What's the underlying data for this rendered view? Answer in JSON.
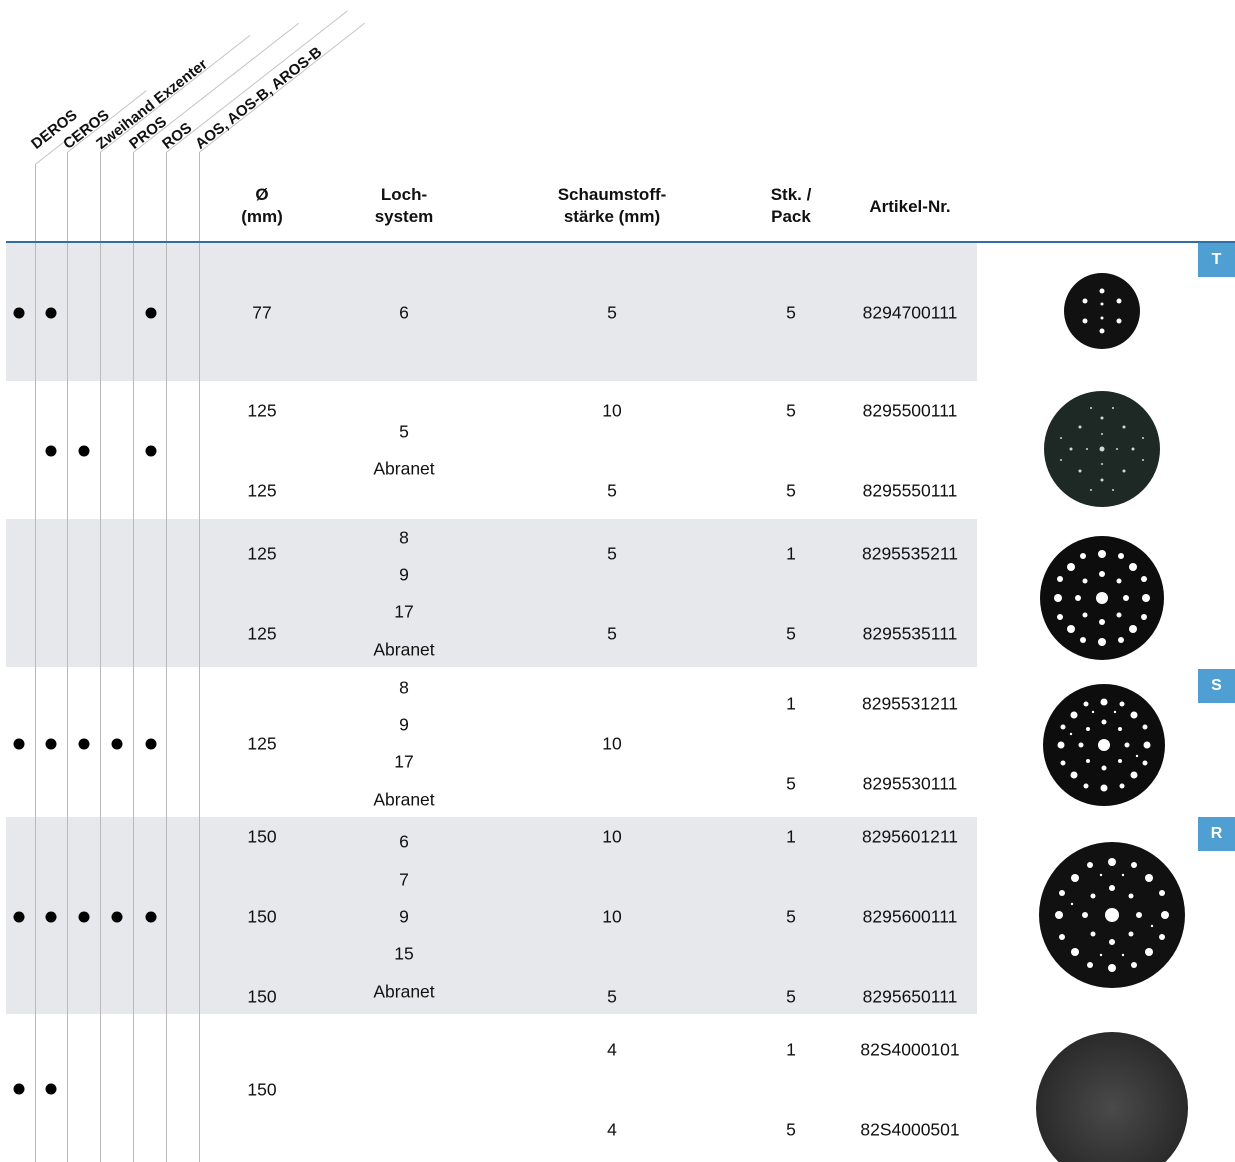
{
  "tools": [
    "DEROS",
    "CEROS",
    "Zweihand Exzenter",
    "PROS",
    "ROS",
    "AOS, AOS-B, AROS-B"
  ],
  "headers": {
    "diameter": [
      "Ø",
      "(mm)"
    ],
    "hole_system": [
      "Loch-",
      "system"
    ],
    "foam": [
      "Schaumstoff-",
      "stärke  (mm)"
    ],
    "pack": [
      "Stk. /",
      "Pack"
    ],
    "article": "Artikel-Nr."
  },
  "tags": [
    "T",
    "S",
    "R"
  ],
  "groups": [
    {
      "compat": [
        true,
        true,
        false,
        false,
        true,
        false
      ],
      "diameters": [
        "77"
      ],
      "hole_systems": [
        "6"
      ],
      "foam": [
        "5"
      ],
      "pack": [
        "5"
      ],
      "articles": [
        "8294700111"
      ],
      "image": "pad-77-6-hole-icon"
    },
    {
      "compat": [
        false,
        true,
        true,
        false,
        true,
        false
      ],
      "diameters": [
        "125",
        "125"
      ],
      "hole_systems": [
        "5",
        "Abranet"
      ],
      "foam": [
        "10",
        "5"
      ],
      "pack": [
        "5",
        "5"
      ],
      "articles": [
        "8295500111",
        "8295550111"
      ],
      "image": "pad-125-abranet-icon"
    },
    {
      "compat": [
        false,
        false,
        false,
        false,
        false,
        false
      ],
      "diameters": [
        "125",
        "125"
      ],
      "hole_systems": [
        "8",
        "9",
        "17",
        "Abranet"
      ],
      "foam": [
        "5",
        "5"
      ],
      "pack": [
        "1",
        "5"
      ],
      "articles": [
        "8295535211",
        "8295535111"
      ],
      "image": "pad-125-multihole-icon"
    },
    {
      "compat": [
        true,
        true,
        true,
        true,
        true,
        false
      ],
      "diameters": [
        "125"
      ],
      "hole_systems": [
        "8",
        "9",
        "17",
        "Abranet"
      ],
      "foam": [
        "10"
      ],
      "pack": [
        "1",
        "5"
      ],
      "articles": [
        "8295531211",
        "8295530111"
      ],
      "image": "pad-125-multihole-s-icon"
    },
    {
      "compat": [
        true,
        true,
        true,
        true,
        true,
        false
      ],
      "diameters": [
        "150",
        "150",
        "150"
      ],
      "hole_systems": [
        "6",
        "7",
        "9",
        "15",
        "Abranet"
      ],
      "foam": [
        "10",
        "10",
        "5"
      ],
      "pack": [
        "1",
        "5",
        "5"
      ],
      "articles": [
        "8295601211",
        "8295600111",
        "8295650111"
      ],
      "image": "pad-150-multihole-icon"
    },
    {
      "compat": [
        true,
        true,
        false,
        false,
        false,
        false
      ],
      "diameters": [
        "150"
      ],
      "hole_systems": [],
      "foam": [
        "4",
        "4"
      ],
      "pack": [
        "1",
        "5"
      ],
      "articles": [
        "82S4000101",
        "82S4000501"
      ],
      "image": "pad-150-solid-icon"
    }
  ]
}
